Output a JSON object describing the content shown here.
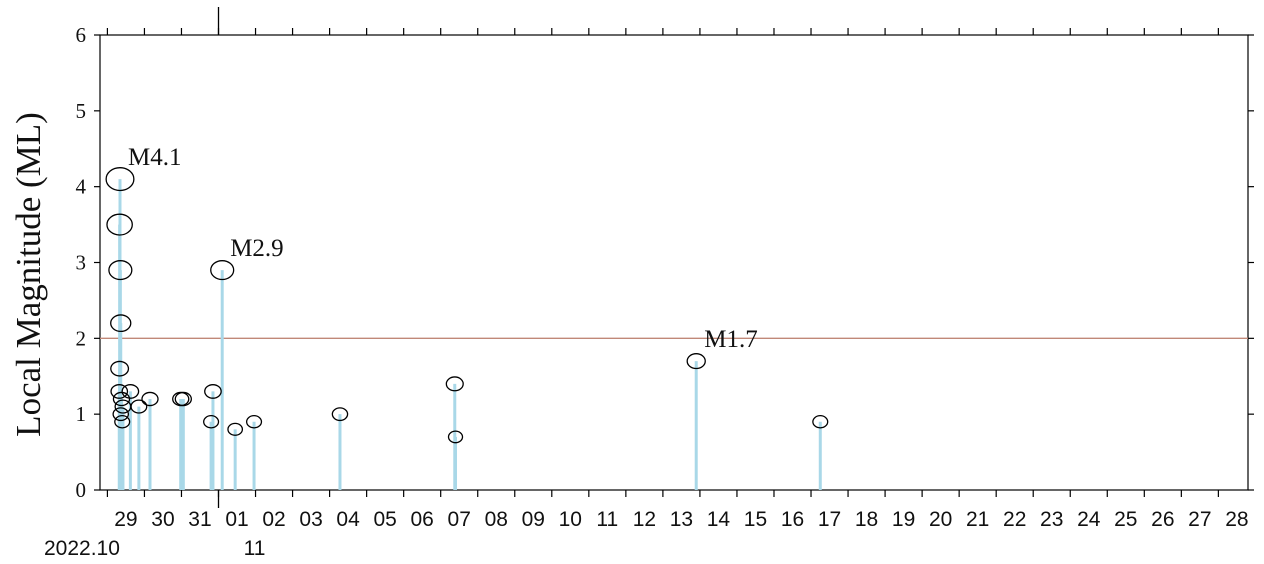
{
  "chart_data": {
    "type": "scatter",
    "ylabel": "Local Magnitude (ML)",
    "ylim": [
      0,
      6
    ],
    "y_ticks": [
      "0",
      "1",
      "2",
      "3",
      "4",
      "5",
      "6"
    ],
    "x_tick_labels": [
      "29",
      "30",
      "31",
      "01",
      "02",
      "03",
      "04",
      "05",
      "06",
      "07",
      "08",
      "09",
      "10",
      "11",
      "12",
      "13",
      "14",
      "15",
      "16",
      "17",
      "18",
      "19",
      "20",
      "21",
      "22",
      "23",
      "24",
      "25",
      "26",
      "27",
      "28"
    ],
    "month_labels": [
      {
        "text": "2022.10",
        "day_index": 0
      },
      {
        "text": "11",
        "day_index": 3
      }
    ],
    "x_range_days": [
      -0.2,
      30.8
    ],
    "reference_line": {
      "y": 2,
      "color": "#c08878"
    },
    "stem_color": "#a9d8e8",
    "marker_edge_color": "#000000",
    "events": [
      {
        "t": 0.34,
        "ml": 4.1
      },
      {
        "t": 0.33,
        "ml": 3.5
      },
      {
        "t": 0.35,
        "ml": 2.9
      },
      {
        "t": 0.36,
        "ml": 2.2
      },
      {
        "t": 0.33,
        "ml": 1.6
      },
      {
        "t": 0.32,
        "ml": 1.3
      },
      {
        "t": 0.38,
        "ml": 1.2
      },
      {
        "t": 0.42,
        "ml": 1.1
      },
      {
        "t": 0.36,
        "ml": 1.0
      },
      {
        "t": 0.4,
        "ml": 0.9
      },
      {
        "t": 0.62,
        "ml": 1.3
      },
      {
        "t": 0.85,
        "ml": 1.1
      },
      {
        "t": 1.15,
        "ml": 1.2
      },
      {
        "t": 1.98,
        "ml": 1.2
      },
      {
        "t": 2.05,
        "ml": 1.2
      },
      {
        "t": 2.85,
        "ml": 1.3
      },
      {
        "t": 2.8,
        "ml": 0.9
      },
      {
        "t": 3.1,
        "ml": 2.9
      },
      {
        "t": 3.45,
        "ml": 0.8
      },
      {
        "t": 3.96,
        "ml": 0.9
      },
      {
        "t": 6.28,
        "ml": 1.0
      },
      {
        "t": 9.38,
        "ml": 1.4
      },
      {
        "t": 9.4,
        "ml": 0.7
      },
      {
        "t": 15.9,
        "ml": 1.7
      },
      {
        "t": 19.25,
        "ml": 0.9
      }
    ],
    "annotations": [
      {
        "text": "M4.1",
        "t": 0.34,
        "ml": 4.1
      },
      {
        "text": "M2.9",
        "t": 3.1,
        "ml": 2.9
      },
      {
        "text": "M1.7",
        "t": 15.9,
        "ml": 1.7
      }
    ]
  }
}
